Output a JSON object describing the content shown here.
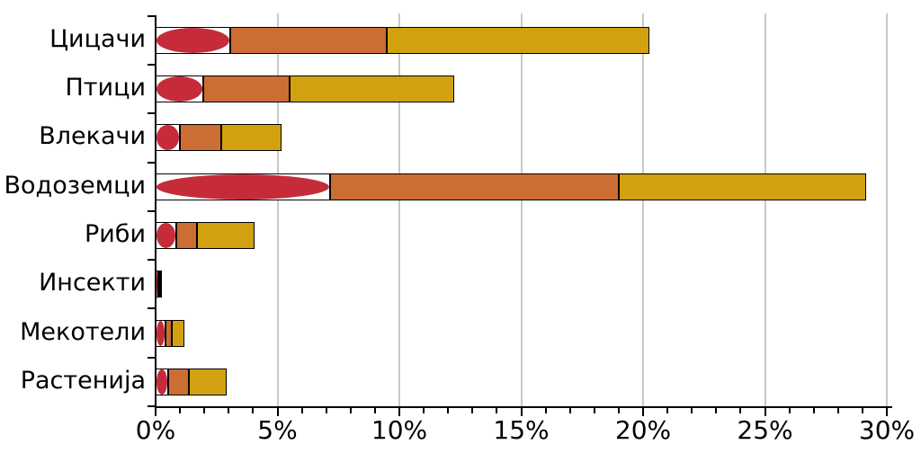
{
  "chart_data": {
    "type": "bar",
    "orientation": "horizontal",
    "title": "",
    "xlabel": "",
    "ylabel": "",
    "xlim": [
      0,
      30
    ],
    "grid": "vertical-major-gridlines",
    "legend": "none",
    "x_tick_major_step": 5,
    "x_tick_minor_step": 1,
    "x_tick_labels": [
      "0%",
      "5%",
      "10%",
      "15%",
      "20%",
      "25%",
      "30%"
    ],
    "x_tick_values": [
      0,
      5,
      10,
      15,
      20,
      25,
      30
    ],
    "categories": [
      "Цицачи",
      "Птици",
      "Влекачи",
      "Водоземци",
      "Риби",
      "Инсекти",
      "Мекотели",
      "Растенија"
    ],
    "series": [
      {
        "name": "critically-threatened-red-ellipse",
        "shape": "ellipse-on-white-segment",
        "color": "#C62B3A",
        "values": [
          3.05,
          1.95,
          1.0,
          7.15,
          0.85,
          0.1,
          0.4,
          0.5
        ]
      },
      {
        "name": "middle-orange-segment",
        "shape": "bar-segment",
        "color": "#CC6D33",
        "values": [
          6.45,
          3.55,
          1.7,
          11.85,
          0.85,
          0.05,
          0.25,
          0.85
        ]
      },
      {
        "name": "outer-gold-segment",
        "shape": "bar-segment",
        "color": "#D2A10F",
        "values": [
          10.75,
          6.75,
          2.45,
          10.15,
          2.35,
          0.05,
          0.55,
          1.55
        ]
      }
    ],
    "stacked_totals_percent": [
      20.25,
      12.25,
      5.15,
      29.15,
      4.05,
      0.2,
      1.2,
      2.9
    ],
    "colors": {
      "outline": "#000000",
      "gridline": "#c9c9c9",
      "background": "#ffffff",
      "text": "#000000"
    }
  }
}
